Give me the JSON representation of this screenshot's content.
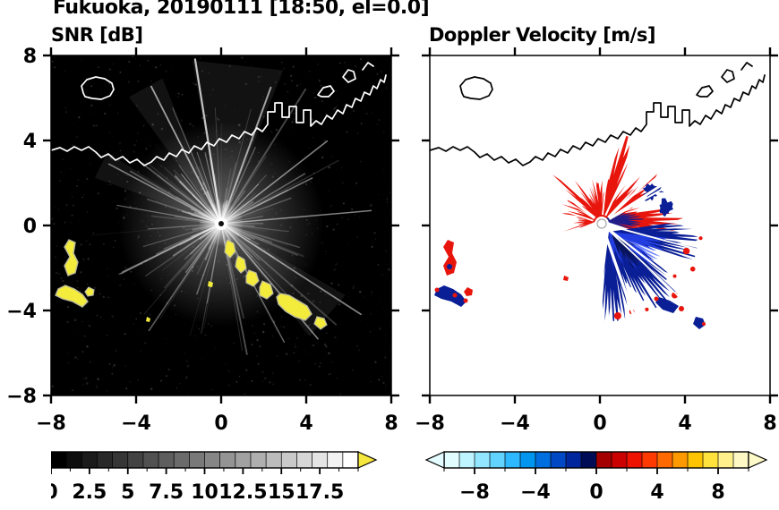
{
  "title": "Fukuoka, 20190111 [18:50, el=0.0]",
  "panels": {
    "left": {
      "title": "SNR [dB]"
    },
    "right": {
      "title": "Doppler Velocity [m/s]"
    }
  },
  "chart_data": [
    {
      "type": "heatmap",
      "panel": "left",
      "title": "SNR [dB]",
      "xlim": [
        -8,
        8
      ],
      "ylim": [
        -8,
        8
      ],
      "x_ticks": [
        -8,
        -4,
        0,
        4,
        8
      ],
      "x_tick_labels": [
        "−8",
        "−4",
        "0",
        "4",
        "8"
      ],
      "y_ticks": [
        8,
        4,
        0,
        -4,
        -8
      ],
      "y_tick_labels": [
        "8",
        "4",
        "0",
        "−4",
        "−8"
      ],
      "show_y_labels": true,
      "background_color": "#000000",
      "coastline_color": "#ffffff",
      "radar_center": [
        0,
        0
      ],
      "clutter_color": "#f4ec3c",
      "clutter_patch_centers": [
        [
          -7,
          -1.5
        ],
        [
          -6.9,
          -3.1
        ],
        [
          -6.2,
          -3.1
        ],
        [
          0.3,
          -1.1
        ],
        [
          0.9,
          -1.8
        ],
        [
          1.5,
          -2.5
        ],
        [
          2.2,
          -3.0
        ],
        [
          3.3,
          -3.8
        ],
        [
          4.7,
          -4.6
        ]
      ],
      "content_summary": "Black SNR field with white radial radar streaks emanating from the radar site at the origin, speckle noise, yellow high-SNR clutter patches southwest and south-southeast of the radar, white coastline across the north.",
      "colorbar": {
        "min": 0,
        "max": 20,
        "tick_values": [
          0,
          2.5,
          5,
          7.5,
          10,
          12.5,
          15,
          17.5
        ],
        "tick_labels": [
          "0",
          "2.5",
          "5",
          "7.5",
          "10",
          "12.5",
          "15",
          "17.5"
        ],
        "minor_tick_step": 1.25,
        "colormap": "black-to-white grayscale",
        "segment_colors": [
          "#000000",
          "#0d0d0d",
          "#1b1b1b",
          "#282828",
          "#363636",
          "#434343",
          "#515151",
          "#5e5e5e",
          "#6b6b6b",
          "#797979",
          "#868686",
          "#949494",
          "#a1a1a1",
          "#afafaf",
          "#bcbcbc",
          "#c9c9c9",
          "#d7d7d7",
          "#e4e4e4",
          "#f2f2f2",
          "#ffffff"
        ],
        "over_color": "#f6e73e",
        "under_color": null
      }
    },
    {
      "type": "heatmap",
      "panel": "right",
      "title": "Doppler Velocity [m/s]",
      "xlim": [
        -8,
        8
      ],
      "ylim": [
        -8,
        8
      ],
      "x_ticks": [
        -8,
        -4,
        0,
        4,
        8
      ],
      "x_tick_labels": [
        "−8",
        "−4",
        "0",
        "4",
        "8"
      ],
      "y_ticks": [
        8,
        4,
        0,
        -4,
        -8
      ],
      "y_tick_labels": [
        "8",
        "4",
        "0",
        "−4",
        "−8"
      ],
      "show_y_labels": false,
      "background_color": "#ffffff",
      "coastline_color": "#000000",
      "radar_center": [
        0,
        0
      ],
      "positive_color": "#e8150d",
      "negative_color": "#0a1e96",
      "content_summary": "White field with black coastline; red (positive) Doppler velocity fan north/northwest of the radar roughly x −2.5..3, y 0..4; dark blue (negative) fan southeast of the radar roughly x 0..4, y −3..0.5; small isolated red/navy echoes southwest matching the SNR clutter patches.",
      "colorbar": {
        "min": -10,
        "max": 10,
        "tick_values": [
          -8,
          -4,
          0,
          4,
          8
        ],
        "tick_labels": [
          "−8",
          "−4",
          "0",
          "4",
          "8"
        ],
        "minor_tick_step": 2,
        "colormap": "cyan-blue-navy / red-orange-pale-yellow diverging",
        "segment_colors": [
          "#e2fdff",
          "#bef4ff",
          "#92e6ff",
          "#62d2ff",
          "#2eb8ff",
          "#0096f0",
          "#006ede",
          "#0048c4",
          "#00269e",
          "#000c55",
          "#a50000",
          "#cb0000",
          "#ee1200",
          "#ff3a00",
          "#ff6a00",
          "#ff9900",
          "#ffc400",
          "#ffe23c",
          "#fff08c",
          "#fdf8c4"
        ],
        "over_color": "#fffbc8",
        "under_color": "#e4fbff"
      }
    }
  ]
}
